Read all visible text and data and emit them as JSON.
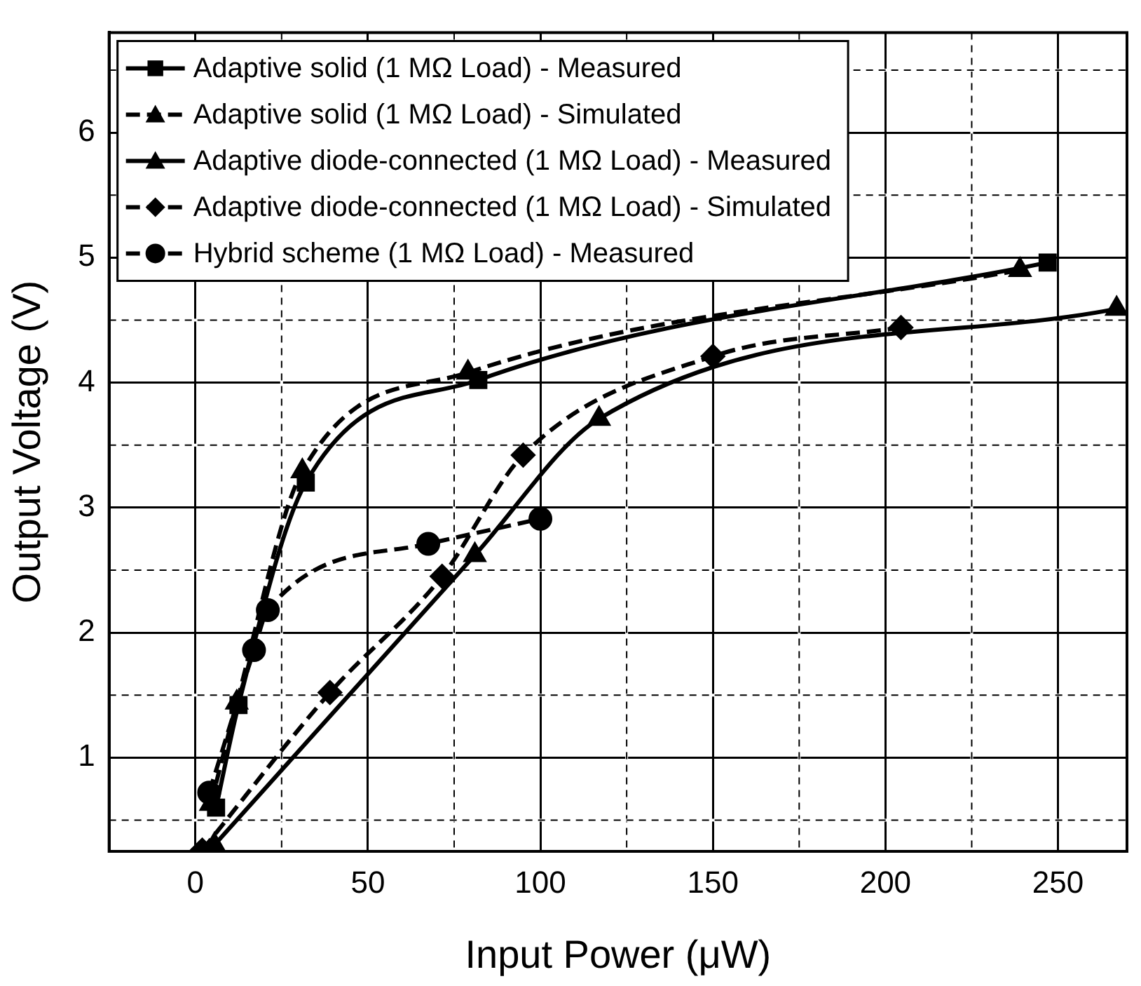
{
  "chart_data": {
    "type": "line",
    "xlabel": "Input Power (μW)",
    "ylabel": "Output Voltage (V)",
    "xlim": [
      -25,
      270
    ],
    "ylim": [
      0.25,
      6.8
    ],
    "xticks": [
      0,
      {
        "value": 25,
        "label": null
      },
      50,
      {
        "value": 75,
        "label": null
      },
      100,
      {
        "value": 125,
        "label": null
      },
      150,
      {
        "value": 175,
        "label": null
      },
      200,
      {
        "value": 225,
        "label": null
      },
      250
    ],
    "yticks": [
      {
        "value": 0.5,
        "label": null
      },
      1,
      {
        "value": 1.5,
        "label": null
      },
      2,
      {
        "value": 2.5,
        "label": null
      },
      3,
      {
        "value": 3.5,
        "label": null
      },
      4,
      {
        "value": 4.5,
        "label": null
      },
      5,
      {
        "value": 5.5,
        "label": null
      },
      6,
      {
        "value": 6.5,
        "label": null
      }
    ],
    "grid": true,
    "legend": "top left",
    "series": [
      {
        "name": "Adaptive solid (1 MΩ Load) - Measured",
        "color": "#000000",
        "marker": "square",
        "line_style": "solid",
        "x": [
          6,
          12.5,
          32,
          82,
          247
        ],
        "values": [
          0.6,
          1.42,
          3.2,
          4.02,
          4.96
        ]
      },
      {
        "name": "Adaptive solid (1 MΩ Load) - Simulated",
        "color": "#000000",
        "marker": "triangle",
        "line_style": "dashed",
        "x": [
          4.5,
          12,
          31,
          79,
          239
        ],
        "values": [
          0.63,
          1.44,
          3.29,
          4.08,
          4.9
        ]
      },
      {
        "name": "Adaptive diode-connected (1 MΩ Load) - Measured",
        "color": "#000000",
        "marker": "triangle",
        "line_style": "solid",
        "x": [
          5.5,
          81,
          117,
          267
        ],
        "values": [
          0.3,
          2.62,
          3.71,
          4.59
        ]
      },
      {
        "name": "Adaptive diode-connected (1 MΩ Load) - Simulated",
        "color": "#000000",
        "marker": "diamond",
        "line_style": "dashed",
        "x": [
          2,
          39,
          71.5,
          95,
          150,
          204.5
        ],
        "values": [
          0.26,
          1.52,
          2.45,
          3.42,
          4.21,
          4.44
        ]
      },
      {
        "name": "Hybrid scheme (1 MΩ Load) - Measured",
        "color": "#000000",
        "marker": "circle",
        "line_style": "dashed",
        "x": [
          4,
          17,
          21,
          67.5,
          100
        ],
        "values": [
          0.72,
          1.86,
          2.18,
          2.71,
          2.91
        ]
      }
    ]
  }
}
